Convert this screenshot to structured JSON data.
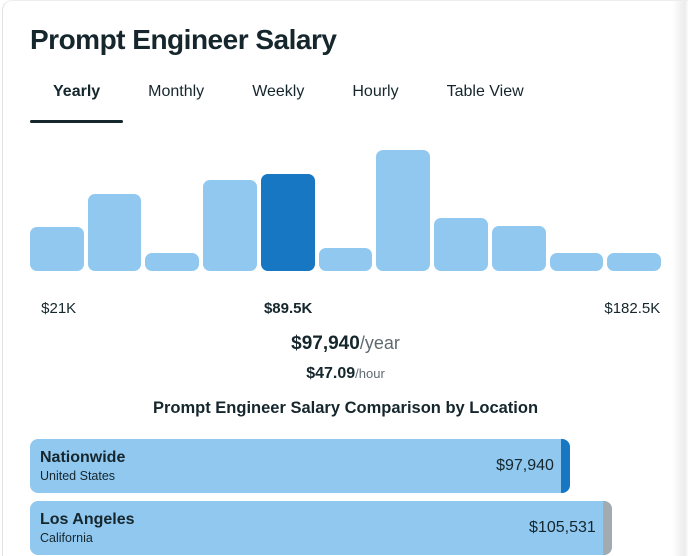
{
  "page": {
    "title": "Prompt Engineer Salary"
  },
  "tabs": [
    {
      "label": "Yearly",
      "active": true
    },
    {
      "label": "Monthly",
      "active": false
    },
    {
      "label": "Weekly",
      "active": false
    },
    {
      "label": "Hourly",
      "active": false
    },
    {
      "label": "Table View",
      "active": false
    }
  ],
  "summary": {
    "yearly_value": "$97,940",
    "yearly_unit": "/year",
    "hourly_value": "$47.09",
    "hourly_unit": "/hour"
  },
  "colors": {
    "bar_light_blue": "#90c8f0",
    "bar_dark_blue": "#1777c2",
    "cap_gray": "#a3abb0",
    "text_dark": "#15262d",
    "text_gray": "#5f6a70"
  },
  "chart_data": [
    {
      "type": "bar",
      "subtype": "salary-distribution-histogram",
      "title": "Prompt Engineer Salary (Yearly distribution)",
      "bins": 11,
      "values_pct_of_max": [
        36,
        64,
        15,
        75,
        80,
        19,
        100,
        44,
        37,
        15,
        15
      ],
      "highlighted_index": 4,
      "bar_color": "#90c8f0",
      "highlight_color": "#1777c2",
      "tick_labels": [
        {
          "bin_index": 0,
          "label": "$21K",
          "bold": false
        },
        {
          "bin_index": 4,
          "label": "$89.5K",
          "bold": true
        },
        {
          "bin_index": 10,
          "label": "$182.5K",
          "bold": false
        }
      ],
      "x_range_labels": [
        "$21K",
        "$182.5K"
      ],
      "grid": false,
      "legend": false
    },
    {
      "type": "bar",
      "subtype": "horizontal-comparison",
      "title": "Prompt Engineer Salary Comparison by Location",
      "categories": [
        "Nationwide",
        "Los Angeles"
      ],
      "sub_labels": [
        "United States",
        "California"
      ],
      "values": [
        97940,
        105531
      ],
      "value_labels": [
        "$97,940",
        "$105,531"
      ],
      "bar_color": "#90c8f0",
      "cap_colors": [
        "#1777c2",
        "#a3abb0"
      ],
      "max_bar_width_pct": 92.2,
      "grid": false,
      "legend": false
    }
  ]
}
